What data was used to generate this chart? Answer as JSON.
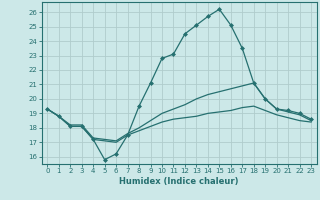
{
  "xlabel": "Humidex (Indice chaleur)",
  "bg_color": "#cce8e8",
  "grid_color": "#b0cccc",
  "line_color": "#267070",
  "xlim": [
    -0.5,
    23.5
  ],
  "ylim": [
    15.5,
    26.7
  ],
  "yticks": [
    16,
    17,
    18,
    19,
    20,
    21,
    22,
    23,
    24,
    25,
    26
  ],
  "xticks": [
    0,
    1,
    2,
    3,
    4,
    5,
    6,
    7,
    8,
    9,
    10,
    11,
    12,
    13,
    14,
    15,
    16,
    17,
    18,
    19,
    20,
    21,
    22,
    23
  ],
  "line1_x": [
    0,
    1,
    2,
    3,
    4,
    5,
    6,
    7,
    8,
    9,
    10,
    11,
    12,
    13,
    14,
    15,
    16,
    17,
    18,
    19,
    20,
    21,
    22,
    23
  ],
  "line1_y": [
    19.3,
    18.8,
    18.1,
    18.1,
    17.2,
    15.8,
    16.2,
    17.5,
    19.5,
    21.1,
    22.8,
    23.1,
    24.5,
    25.1,
    25.7,
    26.2,
    25.1,
    23.5,
    21.1,
    20.0,
    19.3,
    19.2,
    19.0,
    18.6
  ],
  "line2_x": [
    0,
    1,
    2,
    3,
    4,
    5,
    6,
    7,
    8,
    9,
    10,
    11,
    12,
    13,
    14,
    15,
    16,
    17,
    18,
    19,
    20,
    21,
    22,
    23
  ],
  "line2_y": [
    19.3,
    18.8,
    18.2,
    18.2,
    17.3,
    17.2,
    17.1,
    17.6,
    18.0,
    18.5,
    19.0,
    19.3,
    19.6,
    20.0,
    20.3,
    20.5,
    20.7,
    20.9,
    21.1,
    20.0,
    19.3,
    19.1,
    18.9,
    18.5
  ],
  "line3_x": [
    0,
    1,
    2,
    3,
    4,
    5,
    6,
    7,
    8,
    9,
    10,
    11,
    12,
    13,
    14,
    15,
    16,
    17,
    18,
    19,
    20,
    21,
    22,
    23
  ],
  "line3_y": [
    19.3,
    18.8,
    18.1,
    18.1,
    17.2,
    17.1,
    17.0,
    17.5,
    17.8,
    18.1,
    18.4,
    18.6,
    18.7,
    18.8,
    19.0,
    19.1,
    19.2,
    19.4,
    19.5,
    19.2,
    18.9,
    18.7,
    18.5,
    18.4
  ]
}
